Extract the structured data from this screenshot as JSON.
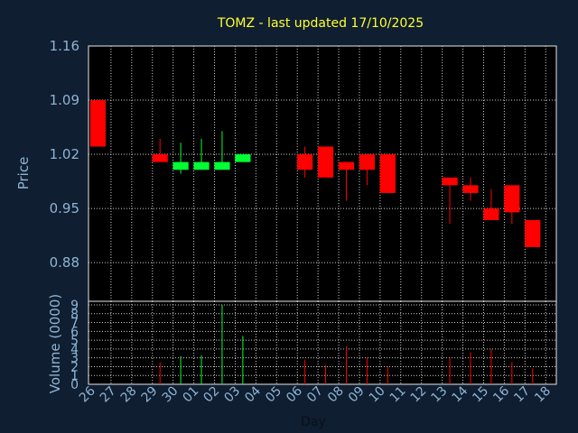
{
  "chart_data": [
    {
      "type": "candlestick",
      "title": "TOMZ - last updated 17/10/2025",
      "ylabel": "Price",
      "ylim": [
        0.83,
        1.16
      ],
      "yticks": [
        "1.16",
        "1.09",
        "1.02",
        "0.95",
        "0.88"
      ],
      "grid": true,
      "up_color": "#00ff33",
      "down_color": "#ff0000",
      "candles": [
        {
          "day": "26",
          "open": 1.09,
          "close": 1.03,
          "high": 1.09,
          "low": 1.03
        },
        {
          "day": "29",
          "open": 1.02,
          "close": 1.01,
          "high": 1.04,
          "low": 1.01
        },
        {
          "day": "30",
          "open": 1.0,
          "close": 1.01,
          "high": 1.035,
          "low": 0.995
        },
        {
          "day": "01",
          "open": 1.0,
          "close": 1.01,
          "high": 1.04,
          "low": 1.0
        },
        {
          "day": "02",
          "open": 1.0,
          "close": 1.01,
          "high": 1.05,
          "low": 1.0
        },
        {
          "day": "03",
          "open": 1.01,
          "close": 1.02,
          "high": 1.02,
          "low": 1.01
        },
        {
          "day": "06",
          "open": 1.02,
          "close": 1.0,
          "high": 1.03,
          "low": 0.99
        },
        {
          "day": "07",
          "open": 1.03,
          "close": 0.99,
          "high": 1.03,
          "low": 0.99
        },
        {
          "day": "08",
          "open": 1.01,
          "close": 1.0,
          "high": 1.01,
          "low": 0.96
        },
        {
          "day": "09",
          "open": 1.02,
          "close": 1.0,
          "high": 1.02,
          "low": 0.98
        },
        {
          "day": "10",
          "open": 1.02,
          "close": 0.97,
          "high": 1.02,
          "low": 0.97
        },
        {
          "day": "13",
          "open": 0.99,
          "close": 0.98,
          "high": 0.99,
          "low": 0.93
        },
        {
          "day": "14",
          "open": 0.98,
          "close": 0.97,
          "high": 0.99,
          "low": 0.96
        },
        {
          "day": "15",
          "open": 0.95,
          "close": 0.935,
          "high": 0.975,
          "low": 0.935
        },
        {
          "day": "16",
          "open": 0.98,
          "close": 0.945,
          "high": 0.98,
          "low": 0.93
        },
        {
          "day": "17",
          "open": 0.935,
          "close": 0.9,
          "high": 0.935,
          "low": 0.9
        }
      ]
    },
    {
      "type": "bar",
      "ylabel": "Volume (0000)",
      "xlabel": "Day",
      "ylim": [
        0,
        9
      ],
      "yticks": [
        "0",
        "1",
        "2",
        "3",
        "4",
        "5",
        "6",
        "7",
        "8",
        "9"
      ],
      "grid": true,
      "categories": [
        "26",
        "27",
        "28",
        "29",
        "30",
        "01",
        "02",
        "03",
        "04",
        "05",
        "06",
        "07",
        "08",
        "09",
        "10",
        "11",
        "12",
        "13",
        "14",
        "15",
        "16",
        "17",
        "18"
      ],
      "values": [
        0,
        0,
        0,
        2.5,
        3.2,
        3.3,
        9.0,
        5.5,
        0,
        0,
        2.8,
        2.2,
        4.3,
        3.0,
        2.0,
        0,
        0,
        3.0,
        3.6,
        4.0,
        2.5,
        1.8,
        0
      ],
      "colors": [
        "",
        "",
        "",
        "#ff0000",
        "#00ff33",
        "#00ff33",
        "#00ff33",
        "#00ff33",
        "",
        "",
        "#ff0000",
        "#ff0000",
        "#ff0000",
        "#ff0000",
        "#ff0000",
        "",
        "",
        "#ff0000",
        "#ff0000",
        "#ff0000",
        "#ff0000",
        "#ff0000",
        ""
      ]
    }
  ]
}
